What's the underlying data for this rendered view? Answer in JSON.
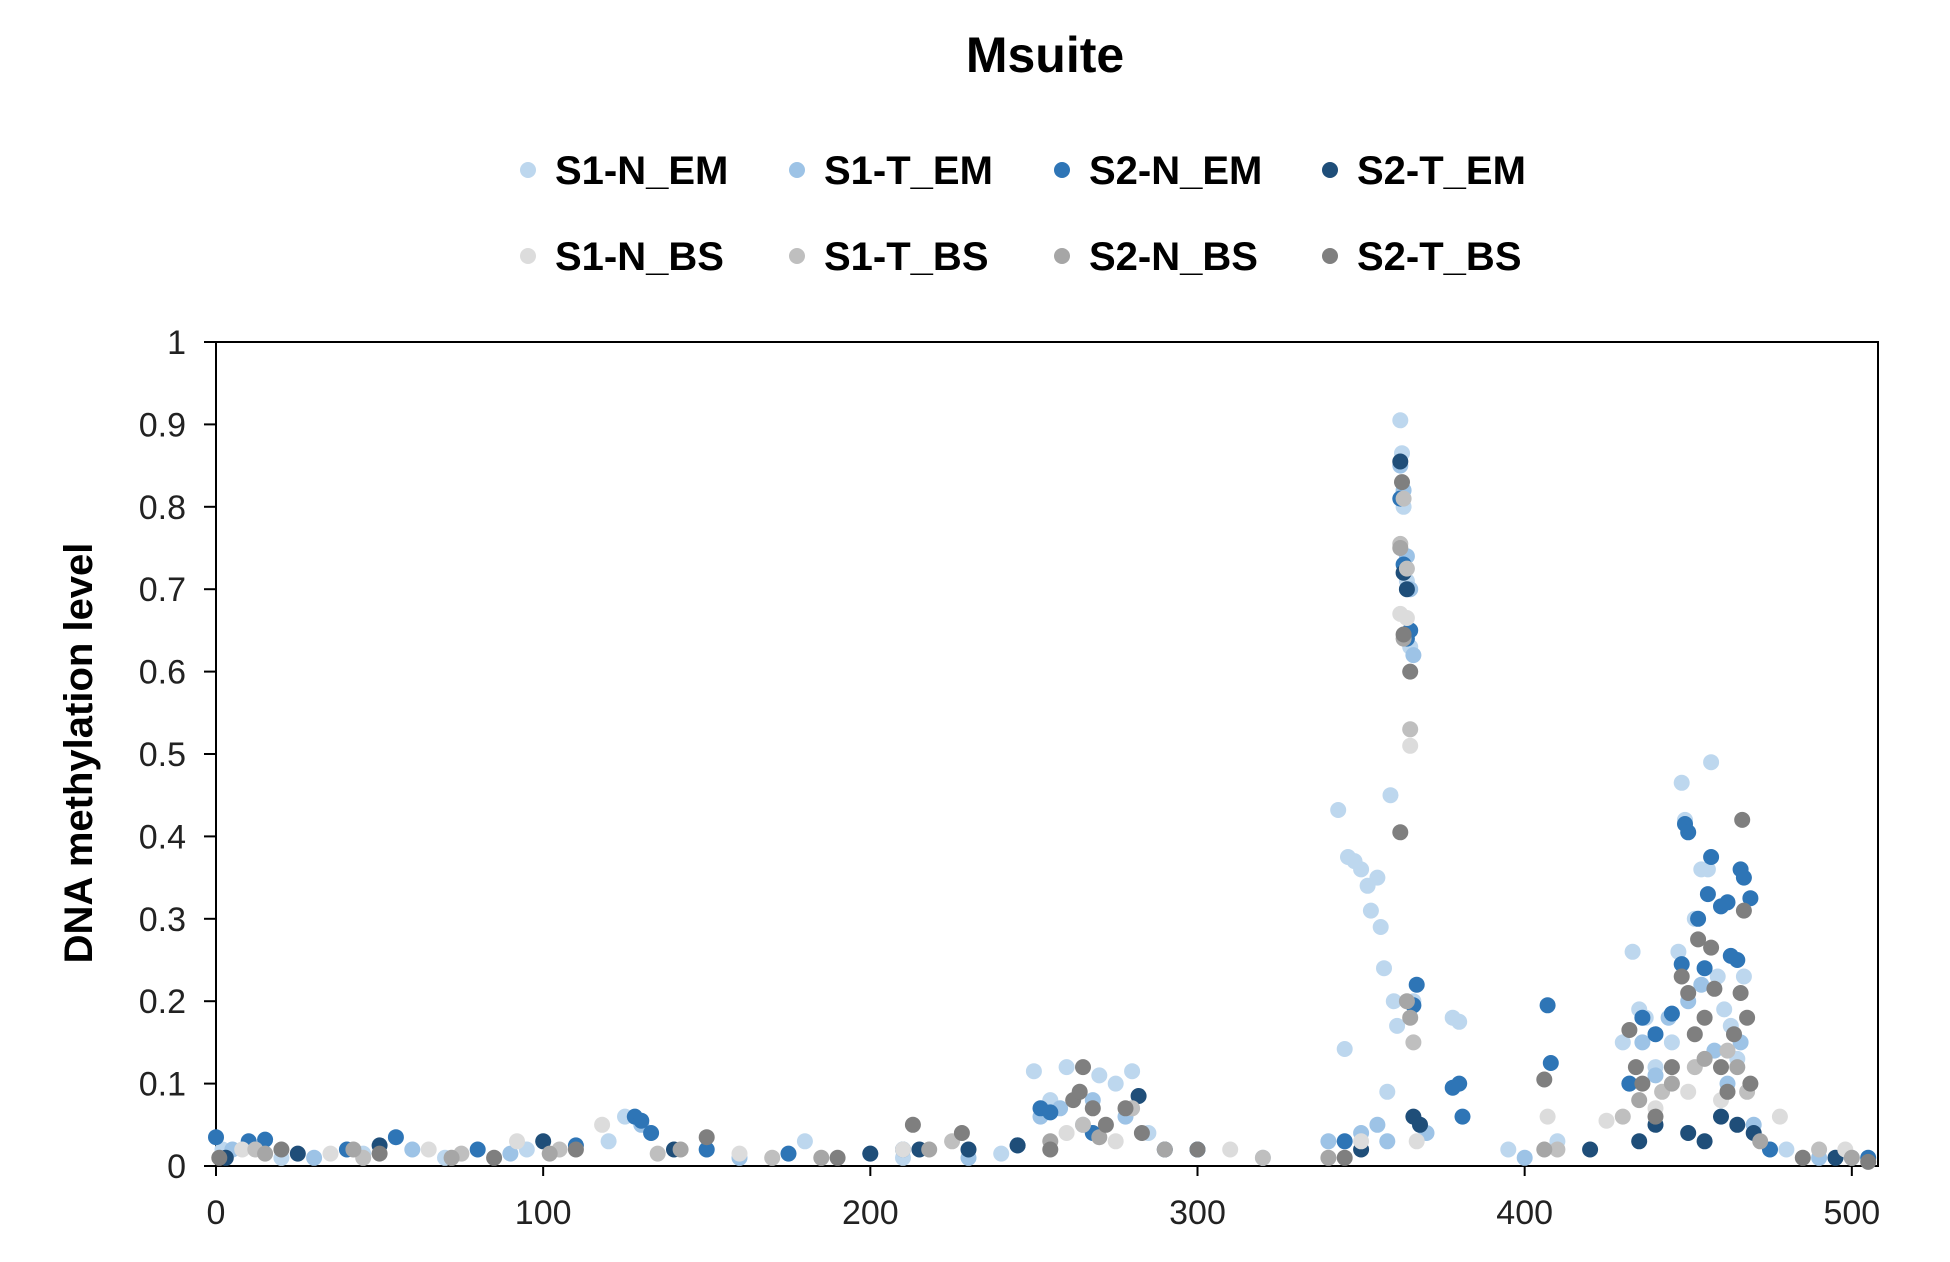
{
  "chart_data": {
    "type": "scatter",
    "title": "Msuite",
    "xlabel": "",
    "ylabel": "DNA methylation level",
    "xlim": [
      0,
      508
    ],
    "ylim": [
      0,
      1
    ],
    "x_ticks": [
      "0",
      "100",
      "200",
      "300",
      "400",
      "500"
    ],
    "y_ticks": [
      "0",
      "0.1",
      "0.2",
      "0.3",
      "0.4",
      "0.5",
      "0.6",
      "0.7",
      "0.8",
      "0.9",
      "1"
    ],
    "legend_position": "top",
    "grid": false,
    "series": [
      {
        "name": "S1-N_EM",
        "color": "#bdd7ee",
        "points": [
          [
            2,
            0.02
          ],
          [
            20,
            0.01
          ],
          [
            45,
            0.015
          ],
          [
            70,
            0.01
          ],
          [
            95,
            0.02
          ],
          [
            120,
            0.03
          ],
          [
            125,
            0.06
          ],
          [
            150,
            0.02
          ],
          [
            180,
            0.03
          ],
          [
            210,
            0.01
          ],
          [
            240,
            0.015
          ],
          [
            250,
            0.115
          ],
          [
            255,
            0.08
          ],
          [
            260,
            0.12
          ],
          [
            265,
            0.05
          ],
          [
            270,
            0.11
          ],
          [
            275,
            0.1
          ],
          [
            280,
            0.115
          ],
          [
            285,
            0.04
          ],
          [
            300,
            0.02
          ],
          [
            320,
            0.01
          ],
          [
            343,
            0.432
          ],
          [
            345,
            0.142
          ],
          [
            346,
            0.375
          ],
          [
            348,
            0.37
          ],
          [
            350,
            0.36
          ],
          [
            352,
            0.34
          ],
          [
            353,
            0.31
          ],
          [
            355,
            0.35
          ],
          [
            356,
            0.29
          ],
          [
            357,
            0.24
          ],
          [
            358,
            0.09
          ],
          [
            359,
            0.45
          ],
          [
            360,
            0.2
          ],
          [
            361,
            0.17
          ],
          [
            362,
            0.905
          ],
          [
            362.5,
            0.865
          ],
          [
            363,
            0.8
          ],
          [
            364,
            0.71
          ],
          [
            365,
            0.63
          ],
          [
            366,
            0.2
          ],
          [
            368,
            0.05
          ],
          [
            378,
            0.18
          ],
          [
            380,
            0.175
          ],
          [
            395,
            0.02
          ],
          [
            410,
            0.03
          ],
          [
            430,
            0.15
          ],
          [
            433,
            0.26
          ],
          [
            435,
            0.19
          ],
          [
            437,
            0.18
          ],
          [
            440,
            0.12
          ],
          [
            445,
            0.15
          ],
          [
            447,
            0.26
          ],
          [
            448,
            0.465
          ],
          [
            449,
            0.42
          ],
          [
            452,
            0.3
          ],
          [
            454,
            0.36
          ],
          [
            456,
            0.36
          ],
          [
            457,
            0.49
          ],
          [
            459,
            0.23
          ],
          [
            461,
            0.19
          ],
          [
            463,
            0.17
          ],
          [
            465,
            0.13
          ],
          [
            467,
            0.23
          ],
          [
            480,
            0.02
          ],
          [
            500,
            0.01
          ]
        ]
      },
      {
        "name": "S1-T_EM",
        "color": "#9dc3e6",
        "points": [
          [
            5,
            0.02
          ],
          [
            30,
            0.01
          ],
          [
            60,
            0.02
          ],
          [
            90,
            0.015
          ],
          [
            130,
            0.05
          ],
          [
            160,
            0.01
          ],
          [
            200,
            0.015
          ],
          [
            230,
            0.01
          ],
          [
            252,
            0.06
          ],
          [
            258,
            0.07
          ],
          [
            268,
            0.08
          ],
          [
            278,
            0.06
          ],
          [
            340,
            0.03
          ],
          [
            350,
            0.04
          ],
          [
            355,
            0.05
          ],
          [
            358,
            0.03
          ],
          [
            362,
            0.85
          ],
          [
            363,
            0.82
          ],
          [
            364,
            0.74
          ],
          [
            365,
            0.7
          ],
          [
            366,
            0.62
          ],
          [
            370,
            0.04
          ],
          [
            400,
            0.01
          ],
          [
            432,
            0.1
          ],
          [
            436,
            0.15
          ],
          [
            440,
            0.11
          ],
          [
            444,
            0.18
          ],
          [
            450,
            0.2
          ],
          [
            454,
            0.22
          ],
          [
            458,
            0.14
          ],
          [
            462,
            0.1
          ],
          [
            466,
            0.15
          ],
          [
            470,
            0.05
          ],
          [
            490,
            0.01
          ]
        ]
      },
      {
        "name": "S2-N_EM",
        "color": "#2e75b6",
        "points": [
          [
            0,
            0.035
          ],
          [
            10,
            0.03
          ],
          [
            15,
            0.032
          ],
          [
            40,
            0.02
          ],
          [
            55,
            0.035
          ],
          [
            80,
            0.02
          ],
          [
            110,
            0.025
          ],
          [
            128,
            0.06
          ],
          [
            130,
            0.055
          ],
          [
            133,
            0.04
          ],
          [
            150,
            0.02
          ],
          [
            175,
            0.015
          ],
          [
            210,
            0.02
          ],
          [
            245,
            0.025
          ],
          [
            252,
            0.07
          ],
          [
            255,
            0.065
          ],
          [
            268,
            0.04
          ],
          [
            300,
            0.02
          ],
          [
            345,
            0.03
          ],
          [
            362,
            0.81
          ],
          [
            363,
            0.73
          ],
          [
            364,
            0.64
          ],
          [
            365,
            0.65
          ],
          [
            366,
            0.195
          ],
          [
            367,
            0.22
          ],
          [
            378,
            0.095
          ],
          [
            380,
            0.1
          ],
          [
            381,
            0.06
          ],
          [
            407,
            0.195
          ],
          [
            408,
            0.125
          ],
          [
            432,
            0.1
          ],
          [
            436,
            0.18
          ],
          [
            440,
            0.16
          ],
          [
            445,
            0.185
          ],
          [
            448,
            0.245
          ],
          [
            449,
            0.415
          ],
          [
            450,
            0.405
          ],
          [
            453,
            0.3
          ],
          [
            455,
            0.24
          ],
          [
            456,
            0.33
          ],
          [
            457,
            0.375
          ],
          [
            460,
            0.315
          ],
          [
            462,
            0.32
          ],
          [
            463,
            0.255
          ],
          [
            465,
            0.25
          ],
          [
            466,
            0.36
          ],
          [
            467,
            0.35
          ],
          [
            469,
            0.325
          ],
          [
            475,
            0.02
          ],
          [
            505,
            0.01
          ]
        ]
      },
      {
        "name": "S2-T_EM",
        "color": "#1f4e79",
        "points": [
          [
            3,
            0.01
          ],
          [
            25,
            0.015
          ],
          [
            50,
            0.025
          ],
          [
            100,
            0.03
          ],
          [
            140,
            0.02
          ],
          [
            200,
            0.015
          ],
          [
            215,
            0.02
          ],
          [
            230,
            0.02
          ],
          [
            245,
            0.025
          ],
          [
            282,
            0.085
          ],
          [
            290,
            0.02
          ],
          [
            350,
            0.02
          ],
          [
            362,
            0.855
          ],
          [
            363,
            0.72
          ],
          [
            364,
            0.7
          ],
          [
            366,
            0.06
          ],
          [
            368,
            0.05
          ],
          [
            420,
            0.02
          ],
          [
            435,
            0.03
          ],
          [
            440,
            0.05
          ],
          [
            450,
            0.04
          ],
          [
            455,
            0.03
          ],
          [
            460,
            0.06
          ],
          [
            465,
            0.05
          ],
          [
            470,
            0.04
          ],
          [
            495,
            0.01
          ]
        ]
      },
      {
        "name": "S1-N_BS",
        "color": "#dcdcdc",
        "points": [
          [
            8,
            0.02
          ],
          [
            35,
            0.015
          ],
          [
            65,
            0.02
          ],
          [
            92,
            0.03
          ],
          [
            118,
            0.05
          ],
          [
            160,
            0.015
          ],
          [
            210,
            0.02
          ],
          [
            260,
            0.04
          ],
          [
            275,
            0.03
          ],
          [
            310,
            0.02
          ],
          [
            350,
            0.03
          ],
          [
            362,
            0.67
          ],
          [
            364,
            0.665
          ],
          [
            365,
            0.51
          ],
          [
            367,
            0.03
          ],
          [
            407,
            0.06
          ],
          [
            425,
            0.055
          ],
          [
            440,
            0.07
          ],
          [
            450,
            0.09
          ],
          [
            460,
            0.08
          ],
          [
            478,
            0.06
          ],
          [
            498,
            0.02
          ]
        ]
      },
      {
        "name": "S1-T_BS",
        "color": "#bfbfbf",
        "points": [
          [
            12,
            0.02
          ],
          [
            45,
            0.01
          ],
          [
            75,
            0.015
          ],
          [
            105,
            0.02
          ],
          [
            135,
            0.015
          ],
          [
            170,
            0.01
          ],
          [
            225,
            0.03
          ],
          [
            265,
            0.05
          ],
          [
            280,
            0.07
          ],
          [
            320,
            0.01
          ],
          [
            362,
            0.755
          ],
          [
            363,
            0.81
          ],
          [
            364,
            0.725
          ],
          [
            365,
            0.53
          ],
          [
            366,
            0.15
          ],
          [
            410,
            0.02
          ],
          [
            430,
            0.06
          ],
          [
            442,
            0.09
          ],
          [
            452,
            0.12
          ],
          [
            462,
            0.14
          ],
          [
            468,
            0.09
          ],
          [
            490,
            0.02
          ]
        ]
      },
      {
        "name": "S2-N_BS",
        "color": "#a6a6a6",
        "points": [
          [
            15,
            0.015
          ],
          [
            42,
            0.02
          ],
          [
            72,
            0.01
          ],
          [
            102,
            0.015
          ],
          [
            142,
            0.02
          ],
          [
            185,
            0.01
          ],
          [
            218,
            0.02
          ],
          [
            255,
            0.03
          ],
          [
            270,
            0.035
          ],
          [
            290,
            0.02
          ],
          [
            340,
            0.01
          ],
          [
            362,
            0.75
          ],
          [
            363,
            0.64
          ],
          [
            364,
            0.2
          ],
          [
            365,
            0.18
          ],
          [
            406,
            0.02
          ],
          [
            435,
            0.08
          ],
          [
            445,
            0.1
          ],
          [
            455,
            0.13
          ],
          [
            465,
            0.12
          ],
          [
            472,
            0.03
          ],
          [
            500,
            0.01
          ]
        ]
      },
      {
        "name": "S2-T_BS",
        "color": "#7f7f7f",
        "points": [
          [
            1,
            0.01
          ],
          [
            20,
            0.02
          ],
          [
            50,
            0.015
          ],
          [
            85,
            0.01
          ],
          [
            110,
            0.02
          ],
          [
            150,
            0.035
          ],
          [
            190,
            0.01
          ],
          [
            213,
            0.05
          ],
          [
            228,
            0.04
          ],
          [
            255,
            0.02
          ],
          [
            262,
            0.08
          ],
          [
            264,
            0.09
          ],
          [
            265,
            0.12
          ],
          [
            268,
            0.07
          ],
          [
            272,
            0.05
          ],
          [
            278,
            0.07
          ],
          [
            283,
            0.04
          ],
          [
            300,
            0.02
          ],
          [
            345,
            0.01
          ],
          [
            362,
            0.405
          ],
          [
            362.5,
            0.83
          ],
          [
            363,
            0.645
          ],
          [
            365,
            0.6
          ],
          [
            406,
            0.105
          ],
          [
            432,
            0.165
          ],
          [
            434,
            0.12
          ],
          [
            436,
            0.1
          ],
          [
            440,
            0.06
          ],
          [
            445,
            0.12
          ],
          [
            448,
            0.23
          ],
          [
            450,
            0.21
          ],
          [
            452,
            0.16
          ],
          [
            453,
            0.275
          ],
          [
            455,
            0.18
          ],
          [
            457,
            0.265
          ],
          [
            458,
            0.215
          ],
          [
            460,
            0.12
          ],
          [
            462,
            0.09
          ],
          [
            464,
            0.16
          ],
          [
            466,
            0.21
          ],
          [
            466.5,
            0.42
          ],
          [
            467,
            0.31
          ],
          [
            468,
            0.18
          ],
          [
            469,
            0.1
          ],
          [
            485,
            0.01
          ],
          [
            505,
            0.005
          ]
        ]
      }
    ]
  }
}
